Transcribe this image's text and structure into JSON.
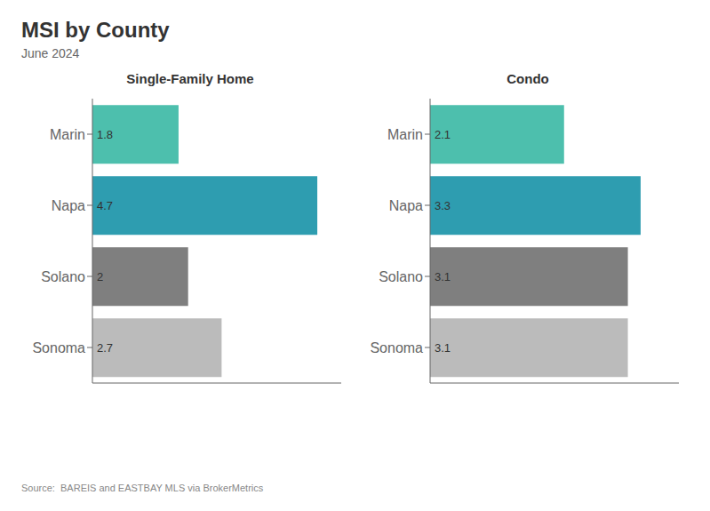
{
  "title": "MSI by County",
  "subtitle": "June 2024",
  "annotations": [
    "Source:  BAREIS and EASTBAY MLS via BrokerMetrics"
  ],
  "chart_data": [
    {
      "type": "bar",
      "title": "Single-Family Home",
      "orientation": "horizontal",
      "categories": [
        "Marin",
        "Napa",
        "Solano",
        "Sonoma"
      ],
      "values": [
        1.8,
        4.7,
        2.0,
        2.7
      ],
      "colors": [
        "#4DBFAD",
        "#2E9DB0",
        "#7F7F7F",
        "#BBBBBB"
      ],
      "xlim": [
        0,
        5.2
      ],
      "data_labels": true,
      "tick_labels": "y",
      "grid": false
    },
    {
      "type": "bar",
      "title": "Condo",
      "orientation": "horizontal",
      "categories": [
        "Marin",
        "Napa",
        "Solano",
        "Sonoma"
      ],
      "values": [
        2.1,
        3.3,
        3.1,
        3.1
      ],
      "colors": [
        "#4DBFAD",
        "#2E9DB0",
        "#7F7F7F",
        "#BBBBBB"
      ],
      "xlim": [
        0,
        3.9
      ],
      "data_labels": true,
      "tick_labels": "y",
      "grid": false
    }
  ]
}
